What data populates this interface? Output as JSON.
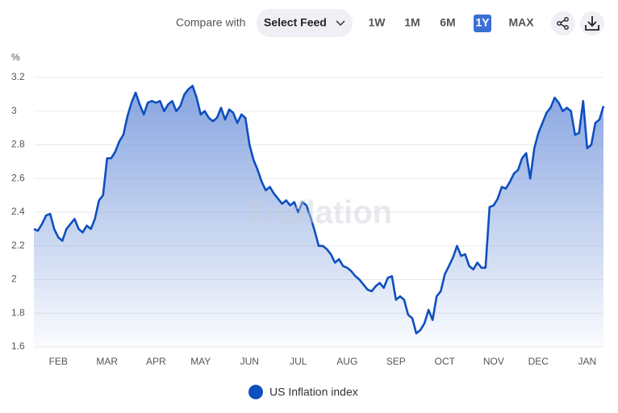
{
  "toolbar": {
    "compare_label": "Compare with",
    "feed_select": "Select Feed",
    "ranges": [
      "1W",
      "1M",
      "6M",
      "1Y",
      "MAX"
    ],
    "active_range": "1Y"
  },
  "chart_data": {
    "type": "line",
    "y_unit": "%",
    "watermark": "Truflation",
    "categories": [
      null,
      null,
      null,
      null,
      null,
      null,
      "FEB",
      null,
      null,
      null,
      null,
      null,
      null,
      null,
      null,
      null,
      null,
      null,
      "MAR",
      null,
      null,
      null,
      null,
      null,
      null,
      null,
      null,
      null,
      null,
      null,
      "APR",
      null,
      null,
      null,
      null,
      null,
      null,
      null,
      null,
      null,
      null,
      "MAY",
      null,
      null,
      null,
      null,
      null,
      null,
      null,
      null,
      null,
      null,
      null,
      "JUN",
      null,
      null,
      null,
      null,
      null,
      null,
      null,
      null,
      null,
      null,
      null,
      "JUL",
      null,
      null,
      null,
      null,
      null,
      null,
      null,
      null,
      null,
      null,
      null,
      "AUG",
      null,
      null,
      null,
      null,
      null,
      null,
      null,
      null,
      null,
      null,
      null,
      "SEP",
      null,
      null,
      null,
      null,
      null,
      null,
      null,
      null,
      null,
      null,
      null,
      "OCT",
      null,
      null,
      null,
      null,
      null,
      null,
      null,
      null,
      null,
      null,
      null,
      "NOV",
      null,
      null,
      null,
      null,
      null,
      null,
      null,
      null,
      null,
      null,
      "DEC",
      null,
      null,
      null,
      null,
      null,
      null,
      null,
      null,
      null,
      null,
      null,
      "JAN",
      null,
      null,
      null,
      null
    ],
    "series": [
      {
        "name": "US Inflation index",
        "color": "#0d4fbf",
        "values": [
          2.3,
          2.29,
          2.33,
          2.38,
          2.39,
          2.3,
          2.25,
          2.23,
          2.3,
          2.33,
          2.36,
          2.3,
          2.28,
          2.32,
          2.3,
          2.36,
          2.47,
          2.5,
          2.72,
          2.72,
          2.76,
          2.82,
          2.86,
          2.97,
          3.05,
          3.11,
          3.04,
          2.98,
          3.05,
          3.06,
          3.05,
          3.06,
          3.0,
          3.04,
          3.06,
          3.0,
          3.03,
          3.1,
          3.13,
          3.15,
          3.08,
          2.98,
          3.0,
          2.96,
          2.94,
          2.96,
          3.02,
          2.95,
          3.01,
          2.99,
          2.93,
          2.98,
          2.96,
          2.8,
          2.71,
          2.65,
          2.58,
          2.53,
          2.55,
          2.51,
          2.48,
          2.45,
          2.47,
          2.44,
          2.46,
          2.4,
          2.46,
          2.44,
          2.37,
          2.29,
          2.2,
          2.2,
          2.18,
          2.15,
          2.1,
          2.12,
          2.08,
          2.07,
          2.05,
          2.02,
          2.0,
          1.97,
          1.94,
          1.93,
          1.96,
          1.98,
          1.95,
          2.01,
          2.02,
          1.88,
          1.9,
          1.88,
          1.79,
          1.77,
          1.68,
          1.7,
          1.74,
          1.82,
          1.76,
          1.9,
          1.93,
          2.03,
          2.08,
          2.13,
          2.2,
          2.14,
          2.15,
          2.08,
          2.06,
          2.1,
          2.07,
          2.07,
          2.43,
          2.44,
          2.48,
          2.55,
          2.54,
          2.58,
          2.63,
          2.65,
          2.72,
          2.75,
          2.6,
          2.78,
          2.87,
          2.93,
          2.99,
          3.02,
          3.08,
          3.05,
          3.0,
          3.02,
          3.0,
          2.86,
          2.87,
          3.06,
          2.78,
          2.8,
          2.93,
          2.95,
          3.03
        ]
      }
    ],
    "ylim": [
      1.6,
      3.2
    ],
    "yticks": [
      1.6,
      1.8,
      2,
      2.2,
      2.4,
      2.6,
      2.8,
      3,
      3.2
    ],
    "grid": true
  }
}
